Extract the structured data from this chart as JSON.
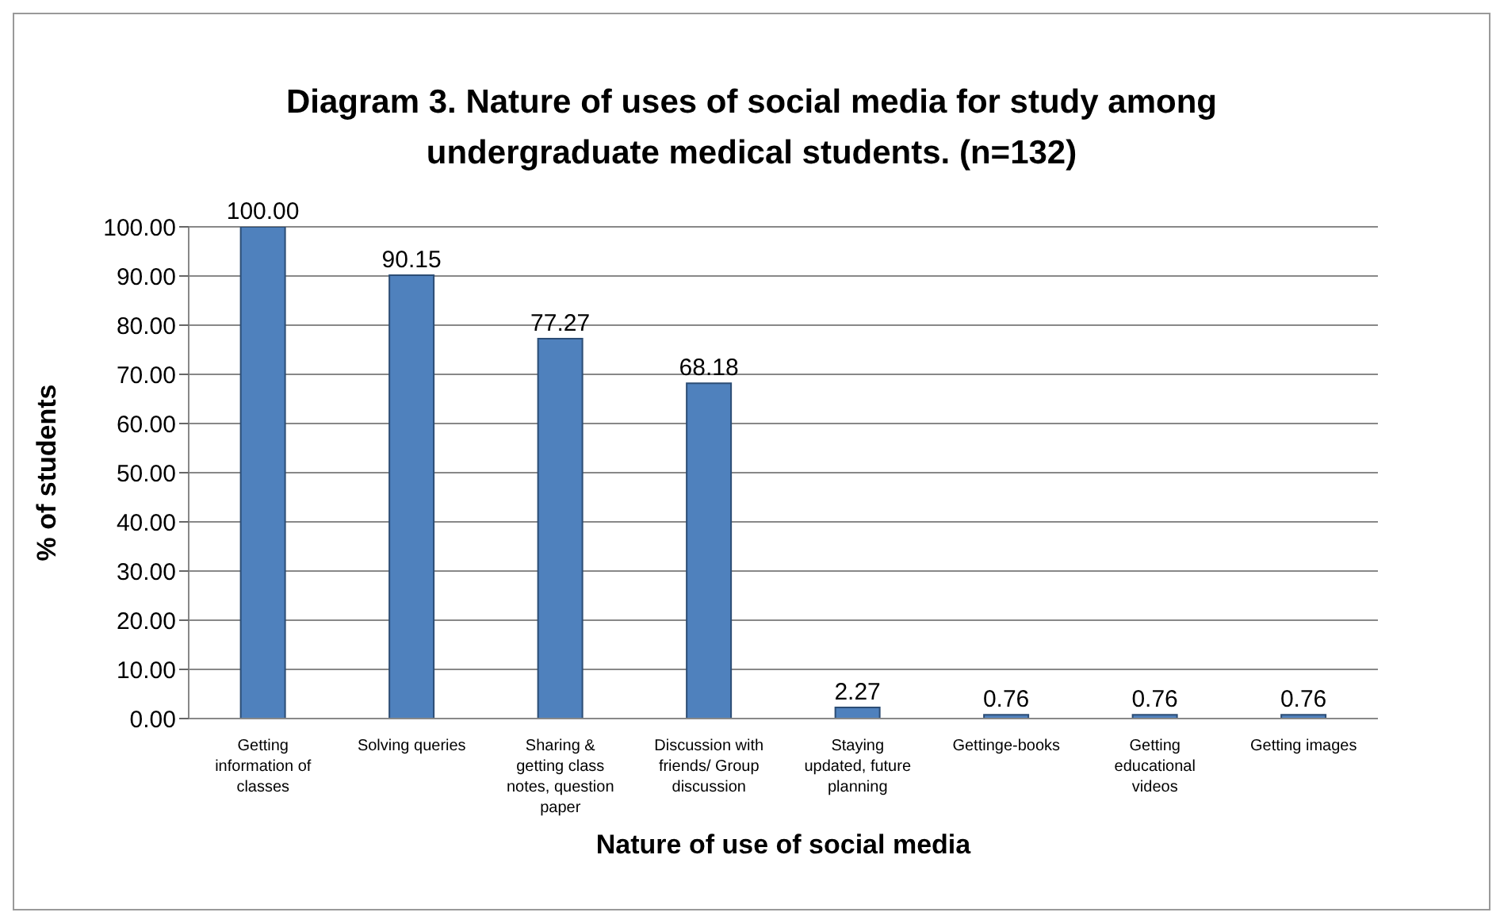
{
  "chart_data": {
    "type": "bar",
    "title": "Diagram 3. Nature of uses of social media for study among undergraduate medical students. (n=132)",
    "xlabel": "Nature of use of social media",
    "ylabel": "% of students",
    "categories": [
      "Getting information of classes",
      "Solving queries",
      "Sharing & getting class notes, question paper",
      "Discussion with friends/ Group discussion",
      "Staying updated, future planning",
      "Gettinge-books",
      "Getting educational videos",
      "Getting images"
    ],
    "values": [
      100.0,
      90.15,
      77.27,
      68.18,
      2.27,
      0.76,
      0.76,
      0.76
    ],
    "value_labels": [
      "100.00",
      "90.15",
      "77.27",
      "68.18",
      "2.27",
      "0.76",
      "0.76",
      "0.76"
    ],
    "color": "#4f81bd",
    "ylim": [
      0,
      100
    ],
    "yticks": [
      {
        "value": 0,
        "label": "0.00"
      },
      {
        "value": 10,
        "label": "10.00"
      },
      {
        "value": 20,
        "label": "20.00"
      },
      {
        "value": 30,
        "label": "30.00"
      },
      {
        "value": 40,
        "label": "40.00"
      },
      {
        "value": 50,
        "label": "50.00"
      },
      {
        "value": 60,
        "label": "60.00"
      },
      {
        "value": 70,
        "label": "70.00"
      },
      {
        "value": 80,
        "label": "80.00"
      },
      {
        "value": 90,
        "label": "90.00"
      },
      {
        "value": 100,
        "label": "100.00"
      }
    ],
    "grid": "y"
  }
}
